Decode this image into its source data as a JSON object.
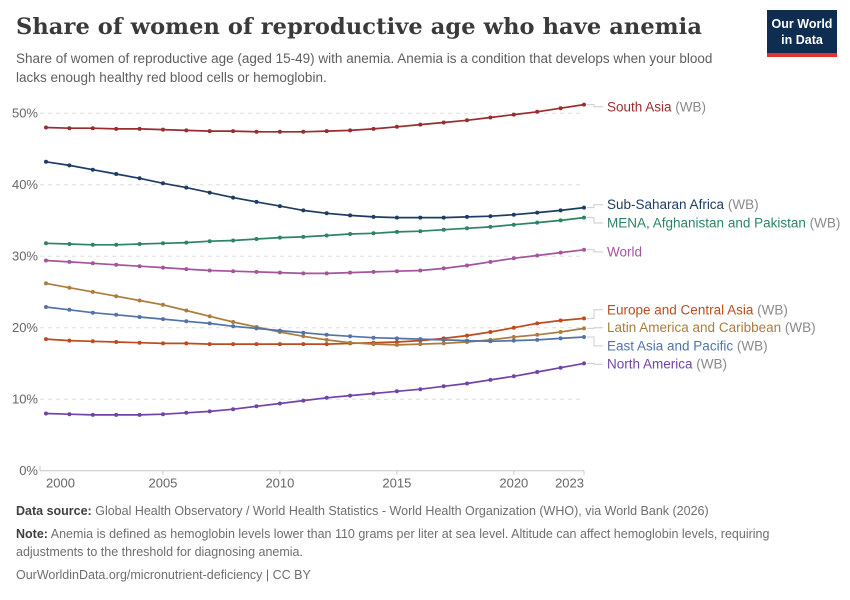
{
  "header": {
    "title": "Share of women of reproductive age who have anemia",
    "subtitle": "Share of women of reproductive age (aged 15-49) with anemia. Anemia is a condition that develops when your blood lacks enough healthy red blood cells or hemoglobin."
  },
  "logo": {
    "line1": "Our World",
    "line2": "in Data",
    "background": "#0E2D51",
    "accent": "#E0352C"
  },
  "chart_data": {
    "type": "line",
    "title": "Share of women of reproductive age who have anemia",
    "xlabel": "",
    "ylabel": "",
    "y_format": "percent",
    "ylim": [
      0,
      52.5
    ],
    "grid": "horizontal-dashed",
    "legend_position": "right-of-line-ends",
    "x": [
      2000,
      2001,
      2002,
      2003,
      2004,
      2005,
      2006,
      2007,
      2008,
      2009,
      2010,
      2011,
      2012,
      2013,
      2014,
      2015,
      2016,
      2017,
      2018,
      2019,
      2020,
      2021,
      2022,
      2023
    ],
    "x_ticks": [
      2000,
      2005,
      2010,
      2015,
      2020,
      2023
    ],
    "y_ticks": [
      0,
      10,
      20,
      30,
      40,
      50
    ],
    "series": [
      {
        "name": "South Asia",
        "suffix": "(WB)",
        "color": "#992C2F",
        "label_v": 50.9,
        "values": [
          48.0,
          47.9,
          47.9,
          47.8,
          47.8,
          47.7,
          47.6,
          47.5,
          47.5,
          47.4,
          47.4,
          47.4,
          47.5,
          47.6,
          47.8,
          48.1,
          48.4,
          48.7,
          49.0,
          49.4,
          49.8,
          50.2,
          50.7,
          51.2
        ]
      },
      {
        "name": "Sub-Saharan Africa",
        "suffix": "(WB)",
        "color": "#1E3C63",
        "label_v": 37.2,
        "values": [
          43.2,
          42.7,
          42.1,
          41.5,
          40.9,
          40.2,
          39.6,
          38.9,
          38.2,
          37.6,
          37.0,
          36.4,
          36.0,
          35.7,
          35.5,
          35.4,
          35.4,
          35.4,
          35.5,
          35.6,
          35.8,
          36.1,
          36.4,
          36.8
        ]
      },
      {
        "name": "MENA, Afghanistan and Pakistan",
        "suffix": "(WB)",
        "color": "#2C8465",
        "label_v": 34.65,
        "values": [
          31.8,
          31.7,
          31.6,
          31.6,
          31.7,
          31.8,
          31.9,
          32.1,
          32.2,
          32.4,
          32.6,
          32.7,
          32.9,
          33.1,
          33.2,
          33.4,
          33.5,
          33.7,
          33.9,
          34.1,
          34.4,
          34.7,
          35.0,
          35.4
        ]
      },
      {
        "name": "World",
        "suffix": "",
        "color": "#A2559C",
        "label_v": 30.6,
        "values": [
          29.4,
          29.2,
          29.0,
          28.8,
          28.6,
          28.4,
          28.2,
          28.0,
          27.9,
          27.8,
          27.7,
          27.6,
          27.6,
          27.7,
          27.8,
          27.9,
          28.0,
          28.3,
          28.7,
          29.2,
          29.7,
          30.1,
          30.5,
          30.9
        ]
      },
      {
        "name": "Europe and Central Asia",
        "suffix": "(WB)",
        "color": "#BE4B1F",
        "label_v": 22.5,
        "values": [
          18.4,
          18.2,
          18.1,
          18.0,
          17.9,
          17.8,
          17.8,
          17.7,
          17.7,
          17.7,
          17.7,
          17.7,
          17.7,
          17.8,
          17.9,
          18.0,
          18.2,
          18.5,
          18.9,
          19.4,
          20.0,
          20.6,
          21.0,
          21.3
        ]
      },
      {
        "name": "Latin America and Caribbean",
        "suffix": "(WB)",
        "color": "#AA7D3E",
        "label_v": 20.0,
        "values": [
          26.2,
          25.6,
          25.0,
          24.4,
          23.8,
          23.2,
          22.4,
          21.6,
          20.8,
          20.1,
          19.4,
          18.8,
          18.3,
          17.9,
          17.7,
          17.6,
          17.7,
          17.8,
          18.0,
          18.3,
          18.7,
          19.0,
          19.4,
          19.9
        ]
      },
      {
        "name": "East Asia and Pacific",
        "suffix": "(WB)",
        "color": "#5273A8",
        "label_v": 17.45,
        "values": [
          22.9,
          22.5,
          22.1,
          21.8,
          21.5,
          21.2,
          20.9,
          20.6,
          20.2,
          19.9,
          19.6,
          19.3,
          19.0,
          18.8,
          18.6,
          18.5,
          18.4,
          18.3,
          18.2,
          18.1,
          18.2,
          18.3,
          18.5,
          18.7
        ]
      },
      {
        "name": "North America",
        "suffix": "(WB)",
        "color": "#7143A8",
        "label_v": 14.9,
        "values": [
          8.0,
          7.9,
          7.8,
          7.8,
          7.8,
          7.9,
          8.1,
          8.3,
          8.6,
          9.0,
          9.4,
          9.8,
          10.2,
          10.5,
          10.8,
          11.1,
          11.4,
          11.8,
          12.2,
          12.7,
          13.2,
          13.8,
          14.4,
          15.0
        ]
      }
    ],
    "colors": {
      "grid": "#dedede",
      "axis": "#c8c8c8",
      "tick_label": "#666666",
      "suffix_label": "#8a8a8a",
      "connector": "#cccccc"
    }
  },
  "footer": {
    "source_label": "Data source:",
    "source_text": "Global Health Observatory / World Health Statistics - World Health Organization (WHO), via World Bank (2026)",
    "note_label": "Note:",
    "note_text": "Anemia is defined as hemoglobin levels lower than 110 grams per liter at sea level. Altitude can affect hemoglobin levels, requiring adjustments to the threshold for diagnosing anemia.",
    "citation": "OurWorldinData.org/micronutrient-deficiency | CC BY"
  }
}
